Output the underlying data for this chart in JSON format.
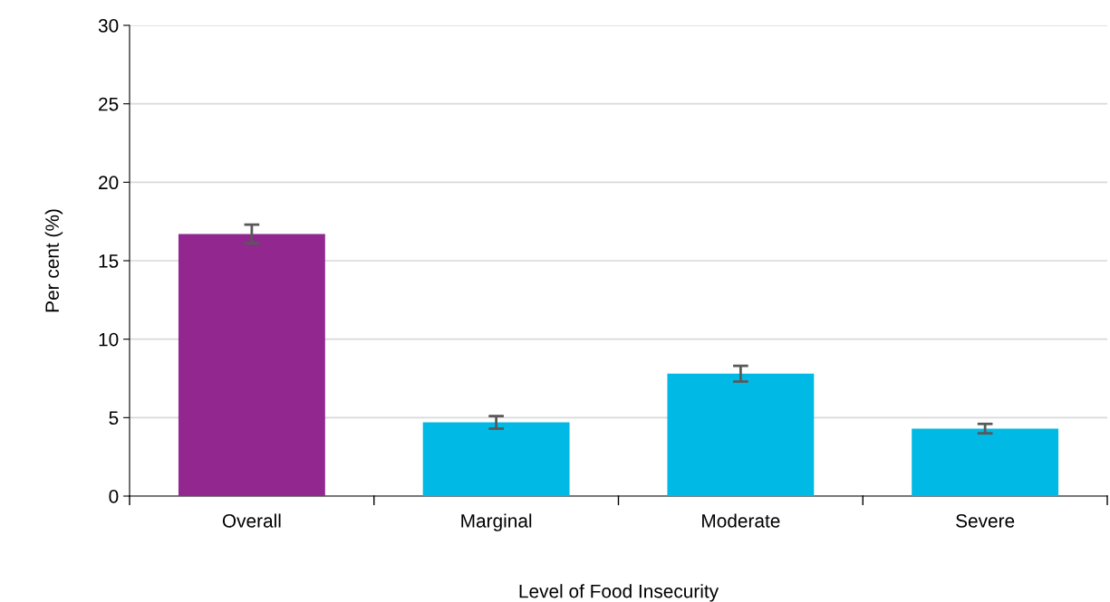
{
  "chart_data": {
    "type": "bar",
    "xlabel": "Level of Food Insecurity",
    "ylabel": "Per cent (%)",
    "categories": [
      "Overall",
      "Marginal",
      "Moderate",
      "Severe"
    ],
    "values": [
      16.7,
      4.7,
      7.8,
      4.3
    ],
    "errors": [
      0.6,
      0.4,
      0.5,
      0.3
    ],
    "colors": [
      "#92278f",
      "#00b9e4",
      "#00b9e4",
      "#00b9e4"
    ],
    "ylim": [
      0,
      30
    ],
    "yticks": [
      0,
      5,
      10,
      15,
      20,
      25,
      30
    ],
    "grid": "y",
    "legend": false
  }
}
